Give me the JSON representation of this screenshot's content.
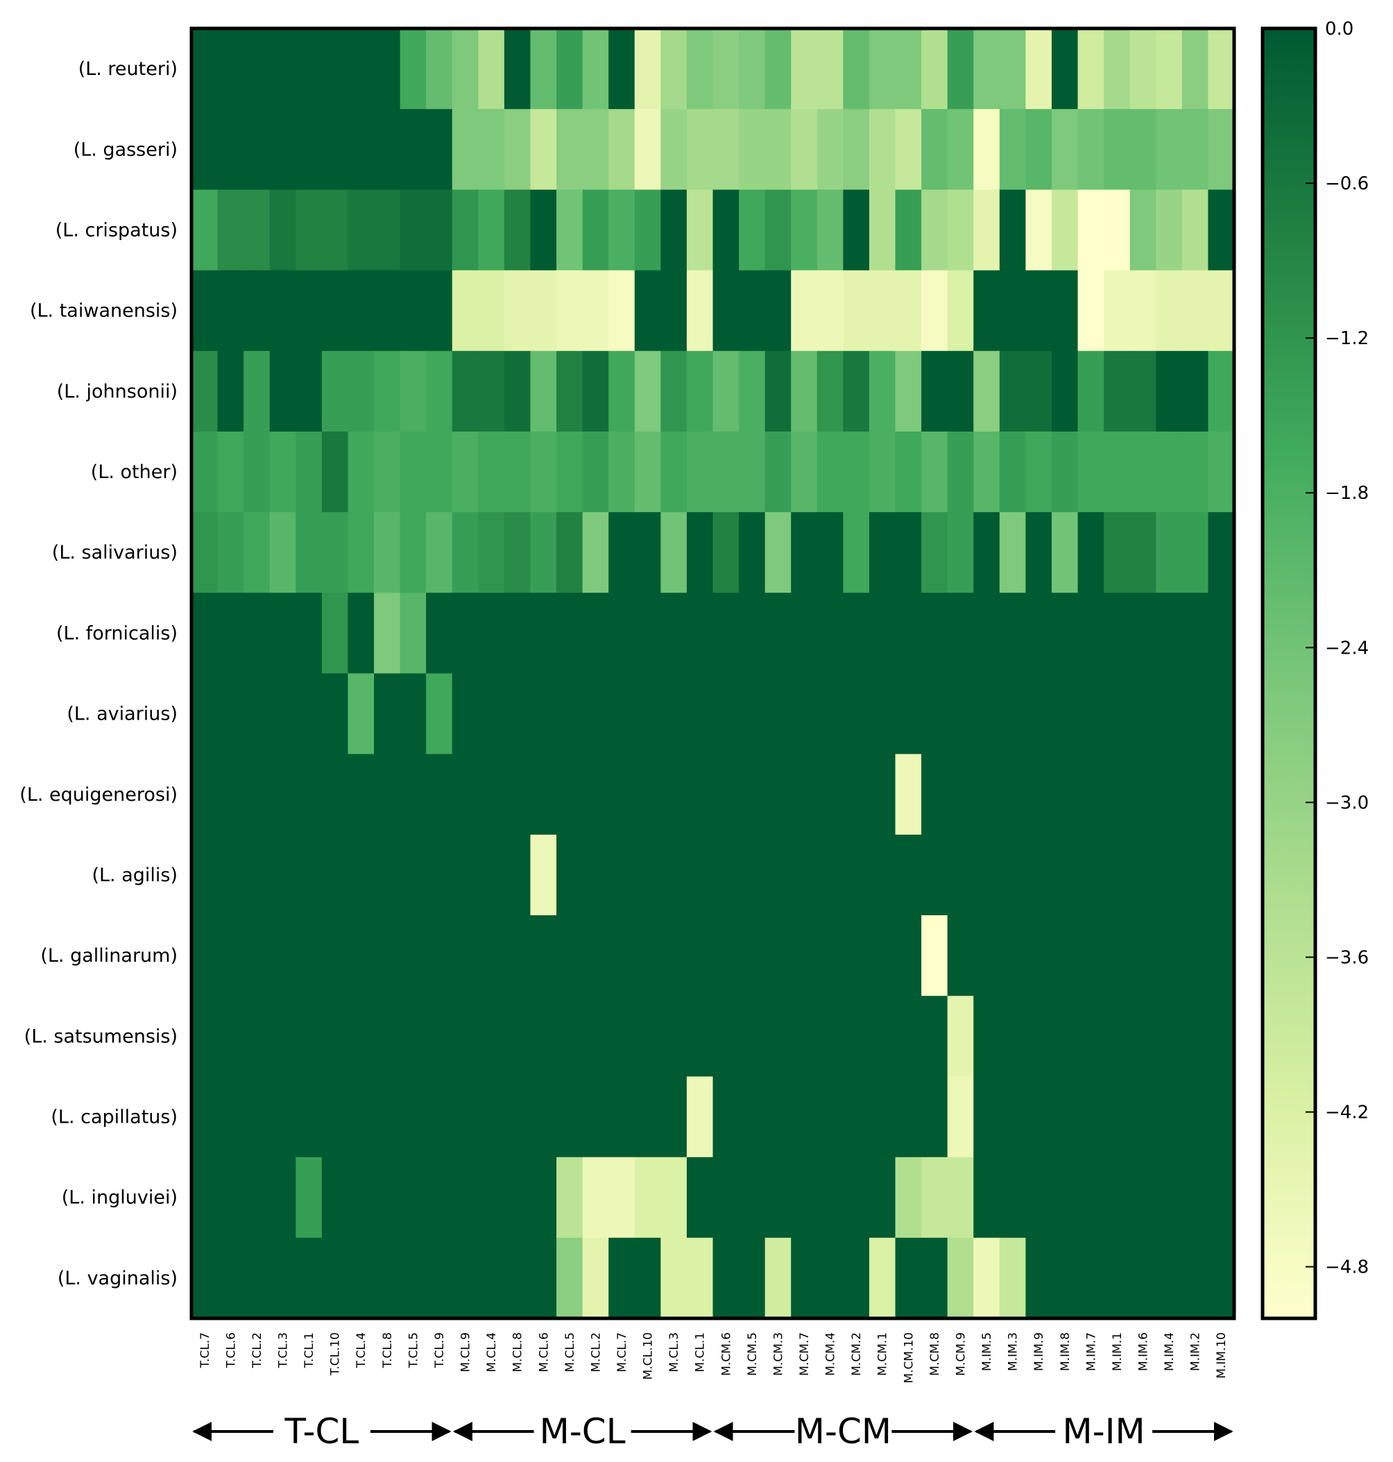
{
  "chart_data": {
    "type": "heatmap",
    "title": "",
    "xlabel": "",
    "ylabel": "",
    "colormap": [
      "#ffffcc",
      "#d9f0a3",
      "#addd8e",
      "#78c679",
      "#41ab5d",
      "#238443",
      "#005a32"
    ],
    "colorbar": {
      "range": [
        -5.0,
        0.0
      ],
      "ticks": [
        0.0,
        -0.6,
        -1.2,
        -1.8,
        -2.4,
        -3.0,
        -3.6,
        -4.2,
        -4.8
      ],
      "tick_labels": [
        "0.0",
        "−0.6",
        "−1.2",
        "−1.8",
        "−2.4",
        "−3.0",
        "−3.6",
        "−4.2",
        "−4.8"
      ]
    },
    "rows": [
      "(L. reuteri)",
      "(L. gasseri)",
      "(L. crispatus)",
      "(L. taiwanensis)",
      "(L. johnsonii)",
      "(L. other)",
      "(L. salivarius)",
      "(L. fornicalis)",
      "(L. aviarius)",
      "(L. equigenerosi)",
      "(L. agilis)",
      "(L. gallinarum)",
      "(L. satsumensis)",
      "(L. capillatus)",
      "(L. ingluviei)",
      "(L. vaginalis)"
    ],
    "columns": [
      "T.CL.7",
      "T.CL.6",
      "T.CL.2",
      "T.CL.3",
      "T.CL.1",
      "T.CL.10",
      "T.CL.4",
      "T.CL.8",
      "T.CL.5",
      "T.CL.9",
      "M.CL.9",
      "M.CL.4",
      "M.CL.8",
      "M.CL.6",
      "M.CL.5",
      "M.CL.2",
      "M.CL.7",
      "M.CL.10",
      "M.CL.3",
      "M.CL.1",
      "M.CM.6",
      "M.CM.5",
      "M.CM.3",
      "M.CM.7",
      "M.CM.4",
      "M.CM.2",
      "M.CM.1",
      "M.CM.10",
      "M.CM.8",
      "M.CM.9",
      "M.IM.5",
      "M.IM.3",
      "M.IM.9",
      "M.IM.8",
      "M.IM.7",
      "M.IM.1",
      "M.IM.6",
      "M.IM.4",
      "M.IM.2",
      "M.IM.10"
    ],
    "groups": [
      {
        "label": "T-CL",
        "start": 0,
        "end": 9
      },
      {
        "label": "M-CL",
        "start": 10,
        "end": 19
      },
      {
        "label": "M-CM",
        "start": 20,
        "end": 29
      },
      {
        "label": "M-IM",
        "start": 30,
        "end": 39
      }
    ],
    "values": [
      [
        0,
        0,
        0,
        0,
        0,
        0,
        0,
        0,
        -1.6,
        -2.2,
        -2.6,
        -3.4,
        0,
        -2.2,
        -1.4,
        -2.4,
        0,
        -4.4,
        -3.2,
        -2.6,
        -2.8,
        -2.6,
        -2.2,
        -3.6,
        -3.6,
        -2.2,
        -2.6,
        -2.6,
        -3.4,
        -1.4,
        -2.6,
        -2.6,
        -4.4,
        0,
        -4.0,
        -3.2,
        -3.6,
        -3.8,
        -2.8,
        -3.8
      ],
      [
        0,
        0,
        0,
        0,
        0,
        0,
        0,
        0,
        0,
        0,
        -2.6,
        -2.6,
        -2.8,
        -3.8,
        -2.8,
        -2.8,
        -3.2,
        -4.6,
        -3.0,
        -3.2,
        -3.2,
        -3.0,
        -3.0,
        -3.4,
        -3.0,
        -2.8,
        -3.4,
        -3.8,
        -2.2,
        -2.4,
        -4.8,
        -2.2,
        -2.0,
        -2.6,
        -2.4,
        -2.2,
        -2.2,
        -2.4,
        -2.4,
        -2.6
      ],
      [
        -1.6,
        -1.0,
        -1.0,
        -0.6,
        -0.8,
        -0.8,
        -0.6,
        -0.6,
        -0.4,
        -0.4,
        -1.2,
        -1.6,
        -0.8,
        0,
        -2.4,
        -1.4,
        -1.8,
        -1.4,
        0,
        -3.6,
        0,
        -1.6,
        -1.2,
        -1.8,
        -2.2,
        0,
        -3.4,
        -1.4,
        -3.2,
        -3.4,
        -4.4,
        0,
        -4.8,
        -3.8,
        -5.0,
        -5.0,
        -2.6,
        -3.0,
        -3.4,
        0
      ],
      [
        0,
        0,
        0,
        0,
        0,
        0,
        0,
        0,
        0,
        0,
        -4.2,
        -4.2,
        -4.4,
        -4.4,
        -4.6,
        -4.6,
        -4.8,
        0,
        0,
        -4.6,
        0,
        0,
        0,
        -4.6,
        -4.6,
        -4.4,
        -4.4,
        -4.4,
        -4.8,
        -4.2,
        0,
        0,
        0,
        0,
        -5.0,
        -4.6,
        -4.6,
        -4.4,
        -4.4,
        -4.4
      ],
      [
        -1.0,
        0,
        -1.4,
        0,
        0,
        -1.4,
        -1.4,
        -1.6,
        -1.8,
        -1.6,
        -0.6,
        -0.6,
        -0.4,
        -2.2,
        -0.8,
        -0.4,
        -1.6,
        -2.6,
        -1.2,
        -1.6,
        -2.2,
        -1.8,
        -0.4,
        -2.2,
        -1.2,
        -0.6,
        -1.8,
        -2.6,
        0,
        0,
        -2.8,
        -0.4,
        -0.4,
        0,
        -1.4,
        -0.6,
        -0.6,
        0,
        0,
        -1.6
      ],
      [
        -1.4,
        -1.6,
        -1.4,
        -1.6,
        -1.4,
        -0.6,
        -1.6,
        -1.8,
        -1.6,
        -1.6,
        -1.8,
        -1.6,
        -1.6,
        -1.8,
        -1.6,
        -1.4,
        -1.8,
        -2.2,
        -1.6,
        -1.8,
        -1.8,
        -1.8,
        -1.4,
        -2.0,
        -1.6,
        -1.6,
        -1.8,
        -1.6,
        -2.0,
        -1.4,
        -2.0,
        -1.4,
        -1.6,
        -1.4,
        -1.6,
        -1.6,
        -1.6,
        -1.6,
        -1.6,
        -1.8
      ],
      [
        -1.2,
        -1.4,
        -1.6,
        -2.0,
        -1.4,
        -1.4,
        -1.6,
        -2.0,
        -1.6,
        -2.0,
        -1.4,
        -1.2,
        -1.0,
        -1.4,
        -0.8,
        -2.6,
        0,
        0,
        -2.4,
        0,
        -0.8,
        0,
        -2.6,
        0,
        0,
        -1.6,
        0,
        0,
        -1.2,
        -1.4,
        0,
        -2.6,
        0,
        -2.4,
        0,
        -0.8,
        -0.8,
        -1.4,
        -1.4,
        0
      ],
      [
        0,
        0,
        0,
        0,
        0,
        -1.2,
        0,
        -2.6,
        -2.0,
        0,
        0,
        0,
        0,
        0,
        0,
        0,
        0,
        0,
        0,
        0,
        0,
        0,
        0,
        0,
        0,
        0,
        0,
        0,
        0,
        0,
        0,
        0,
        0,
        0,
        0,
        0,
        0,
        0,
        0,
        0
      ],
      [
        0,
        0,
        0,
        0,
        0,
        0,
        -2.0,
        0,
        0,
        -1.6,
        0,
        0,
        0,
        0,
        0,
        0,
        0,
        0,
        0,
        0,
        0,
        0,
        0,
        0,
        0,
        0,
        0,
        0,
        0,
        0,
        0,
        0,
        0,
        0,
        0,
        0,
        0,
        0,
        0,
        0
      ],
      [
        0,
        0,
        0,
        0,
        0,
        0,
        0,
        0,
        0,
        0,
        0,
        0,
        0,
        0,
        0,
        0,
        0,
        0,
        0,
        0,
        0,
        0,
        0,
        0,
        0,
        0,
        0,
        -4.6,
        0,
        0,
        0,
        0,
        0,
        0,
        0,
        0,
        0,
        0,
        0,
        0
      ],
      [
        0,
        0,
        0,
        0,
        0,
        0,
        0,
        0,
        0,
        0,
        0,
        0,
        0,
        -4.6,
        0,
        0,
        0,
        0,
        0,
        0,
        0,
        0,
        0,
        0,
        0,
        0,
        0,
        0,
        0,
        0,
        0,
        0,
        0,
        0,
        0,
        0,
        0,
        0,
        0,
        0
      ],
      [
        0,
        0,
        0,
        0,
        0,
        0,
        0,
        0,
        0,
        0,
        0,
        0,
        0,
        0,
        0,
        0,
        0,
        0,
        0,
        0,
        0,
        0,
        0,
        0,
        0,
        0,
        0,
        0,
        -5.0,
        0,
        0,
        0,
        0,
        0,
        0,
        0,
        0,
        0,
        0,
        0
      ],
      [
        0,
        0,
        0,
        0,
        0,
        0,
        0,
        0,
        0,
        0,
        0,
        0,
        0,
        0,
        0,
        0,
        0,
        0,
        0,
        0,
        0,
        0,
        0,
        0,
        0,
        0,
        0,
        0,
        0,
        -4.4,
        0,
        0,
        0,
        0,
        0,
        0,
        0,
        0,
        0,
        0
      ],
      [
        0,
        0,
        0,
        0,
        0,
        0,
        0,
        0,
        0,
        0,
        0,
        0,
        0,
        0,
        0,
        0,
        0,
        0,
        0,
        -4.6,
        0,
        0,
        0,
        0,
        0,
        0,
        0,
        0,
        0,
        -4.6,
        0,
        0,
        0,
        0,
        0,
        0,
        0,
        0,
        0,
        0
      ],
      [
        0,
        0,
        0,
        0,
        -1.4,
        0,
        0,
        0,
        0,
        0,
        0,
        0,
        0,
        0,
        -3.6,
        -4.6,
        -4.6,
        -4.2,
        -4.2,
        0,
        0,
        0,
        0,
        0,
        0,
        0,
        0,
        -3.4,
        -3.8,
        -3.8,
        0,
        0,
        0,
        0,
        0,
        0,
        0,
        0,
        0,
        0
      ],
      [
        0,
        0,
        0,
        0,
        0,
        0,
        0,
        0,
        0,
        0,
        0,
        0,
        0,
        0,
        -2.8,
        -4.4,
        0,
        0,
        -4.2,
        -4.2,
        0,
        0,
        -4.0,
        0,
        0,
        0,
        -4.2,
        0,
        0,
        -3.4,
        -4.6,
        -3.8,
        0,
        0,
        0,
        0,
        0,
        0,
        0,
        0
      ]
    ]
  }
}
